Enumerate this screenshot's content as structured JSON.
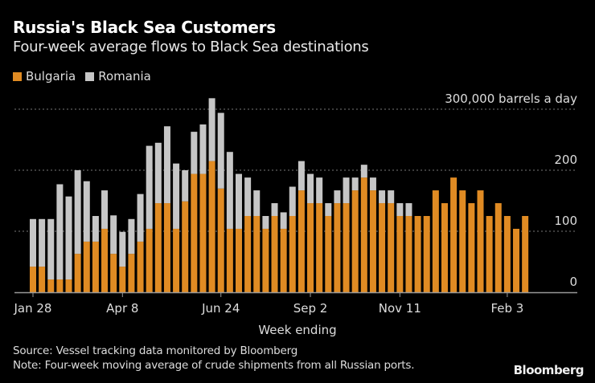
{
  "chart_data": {
    "type": "bar",
    "stacked": true,
    "title": "Russia's Black Sea Customers",
    "subtitle": "Four-week average flows to Black Sea destinations",
    "xlabel": "Week ending",
    "ylabel": "",
    "unit_label": "300,000 barrels a day",
    "ylim": [
      0,
      300
    ],
    "yticks": [
      {
        "value": 0,
        "label": "0"
      },
      {
        "value": 100,
        "label": "100"
      },
      {
        "value": 200,
        "label": "200"
      },
      {
        "value": 300,
        "label": "300,000 barrels a day"
      }
    ],
    "xticks": [
      {
        "index": 0,
        "label": "Jan 28"
      },
      {
        "index": 10,
        "label": "Apr 8"
      },
      {
        "index": 21,
        "label": "Jun 24"
      },
      {
        "index": 31,
        "label": "Sep 2"
      },
      {
        "index": 41,
        "label": "Nov 11"
      },
      {
        "index": 53,
        "label": "Feb 3"
      }
    ],
    "grid": true,
    "legend_placement": "top-left",
    "series": [
      {
        "name": "Bulgaria",
        "color": "#e08b23",
        "values": [
          42,
          42,
          21,
          21,
          21,
          63,
          83,
          83,
          104,
          63,
          42,
          63,
          83,
          104,
          146,
          146,
          104,
          149,
          194,
          194,
          215,
          170,
          104,
          104,
          125,
          125,
          104,
          125,
          104,
          125,
          167,
          146,
          146,
          125,
          146,
          146,
          167,
          188,
          167,
          146,
          146,
          125,
          125,
          125,
          125,
          167,
          146,
          188,
          167,
          146,
          167,
          125,
          146,
          125,
          104,
          125
        ]
      },
      {
        "name": "Romania",
        "color": "#c6c6c6",
        "values": [
          78,
          78,
          99,
          156,
          136,
          137,
          99,
          42,
          63,
          63,
          57,
          57,
          78,
          136,
          99,
          126,
          107,
          51,
          69,
          81,
          103,
          124,
          126,
          90,
          63,
          42,
          21,
          21,
          27,
          48,
          48,
          48,
          42,
          21,
          21,
          42,
          21,
          21,
          21,
          21,
          21,
          21,
          21,
          0,
          0,
          0,
          0,
          0,
          0,
          0,
          0,
          0,
          0,
          0,
          0,
          0
        ]
      }
    ]
  },
  "footer": {
    "source": "Source: Vessel tracking data monitored by Bloomberg",
    "note": "Note: Four-week moving average of crude shipments from all Russian ports.",
    "logo": "Bloomberg"
  }
}
